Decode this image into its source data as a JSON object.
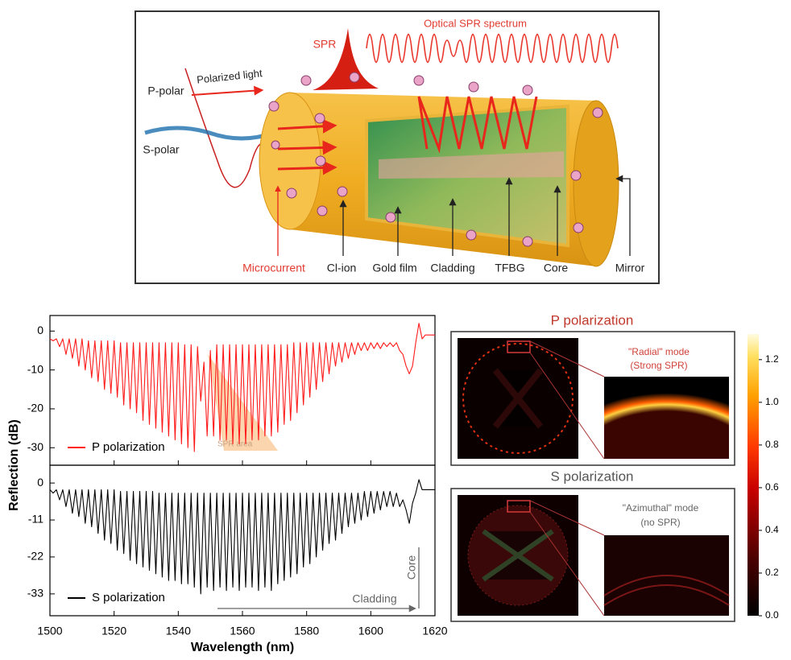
{
  "diagram": {
    "spectrum_label": "Optical SPR spectrum",
    "spr_label": "SPR",
    "light_label": "Polarized light",
    "p_label": "P-polar",
    "s_label": "S-polar",
    "parts": [
      "Microcurrent",
      "Cl-ion",
      "Gold film",
      "Cladding",
      "TFBG",
      "Core",
      "Mirror"
    ]
  },
  "chart_data": [
    {
      "type": "line",
      "ylabel": "Reflection (dB)",
      "annotations": [
        "SPR area"
      ],
      "x": [
        1500,
        1501,
        1502,
        1503,
        1504,
        1505,
        1506,
        1507,
        1508,
        1509,
        1510,
        1511,
        1512,
        1513,
        1514,
        1515,
        1516,
        1517,
        1518,
        1519,
        1520,
        1521,
        1522,
        1523,
        1524,
        1525,
        1526,
        1527,
        1528,
        1529,
        1530,
        1531,
        1532,
        1533,
        1534,
        1535,
        1536,
        1537,
        1538,
        1539,
        1540,
        1541,
        1542,
        1543,
        1544,
        1545,
        1546,
        1547,
        1548,
        1549,
        1550,
        1551,
        1552,
        1553,
        1554,
        1555,
        1556,
        1557,
        1558,
        1559,
        1560,
        1561,
        1562,
        1563,
        1564,
        1565,
        1566,
        1567,
        1568,
        1569,
        1570,
        1571,
        1572,
        1573,
        1574,
        1575,
        1576,
        1577,
        1578,
        1579,
        1580,
        1581,
        1582,
        1583,
        1584,
        1585,
        1586,
        1587,
        1588,
        1589,
        1590,
        1591,
        1592,
        1593,
        1594,
        1595,
        1596,
        1597,
        1598,
        1599,
        1600,
        1601,
        1602,
        1603,
        1604,
        1605,
        1606,
        1607,
        1608,
        1609,
        1610,
        1611,
        1612,
        1613,
        1614,
        1615,
        1616,
        1617,
        1618,
        1619,
        1620
      ],
      "series": [
        {
          "name": "P polarization",
          "color": "#ff1a1a",
          "values": [
            -2,
            -2.5,
            -2,
            -4,
            -2,
            -6,
            -2,
            -7,
            -2,
            -9,
            -2,
            -10,
            -2.5,
            -12,
            -2.5,
            -13,
            -2.5,
            -15,
            -2.5,
            -16,
            -2.5,
            -17,
            -3,
            -19,
            -3,
            -20,
            -3,
            -21,
            -3,
            -23,
            -3,
            -24,
            -3,
            -25,
            -3,
            -26,
            -3,
            -27,
            -3,
            -28,
            -3,
            -29,
            -3.5,
            -30,
            -3.5,
            -31,
            -4,
            -18,
            -8,
            -27,
            -5,
            -27,
            -3.5,
            -28,
            -3.5,
            -28,
            -3.5,
            -29,
            -3.5,
            -29,
            -3.5,
            -29,
            -3.5,
            -28,
            -3.5,
            -28,
            -3.5,
            -27,
            -3.5,
            -27,
            -3.5,
            -26,
            -3.5,
            -24,
            -3.5,
            -23,
            -3,
            -21,
            -3,
            -19,
            -3,
            -17,
            -3,
            -15,
            -3,
            -13,
            -3,
            -11,
            -3,
            -9,
            -3,
            -8,
            -3,
            -7,
            -3,
            -6,
            -3,
            -5,
            -3,
            -5,
            -3,
            -4.5,
            -3,
            -4.5,
            -3,
            -4,
            -3,
            -4,
            -3,
            -5,
            -6,
            -9,
            -11,
            -9,
            -3,
            2,
            -2,
            -1,
            -1,
            -1,
            -1
          ]
        }
      ],
      "xlim": [
        1500,
        1620
      ],
      "xticks": [
        1500,
        1520,
        1540,
        1560,
        1580,
        1600,
        1620
      ],
      "ylim": [
        -34.5,
        4
      ],
      "yticks": [
        0,
        -10,
        -20,
        -30
      ]
    },
    {
      "type": "line",
      "xlabel": "Wavelength (nm)",
      "annotations": [
        "Cladding",
        "Core"
      ],
      "x": [
        1500,
        1501,
        1502,
        1503,
        1504,
        1505,
        1506,
        1507,
        1508,
        1509,
        1510,
        1511,
        1512,
        1513,
        1514,
        1515,
        1516,
        1517,
        1518,
        1519,
        1520,
        1521,
        1522,
        1523,
        1524,
        1525,
        1526,
        1527,
        1528,
        1529,
        1530,
        1531,
        1532,
        1533,
        1534,
        1535,
        1536,
        1537,
        1538,
        1539,
        1540,
        1541,
        1542,
        1543,
        1544,
        1545,
        1546,
        1547,
        1548,
        1549,
        1550,
        1551,
        1552,
        1553,
        1554,
        1555,
        1556,
        1557,
        1558,
        1559,
        1560,
        1561,
        1562,
        1563,
        1564,
        1565,
        1566,
        1567,
        1568,
        1569,
        1570,
        1571,
        1572,
        1573,
        1574,
        1575,
        1576,
        1577,
        1578,
        1579,
        1580,
        1581,
        1582,
        1583,
        1584,
        1585,
        1586,
        1587,
        1588,
        1589,
        1590,
        1591,
        1592,
        1593,
        1594,
        1595,
        1596,
        1597,
        1598,
        1599,
        1600,
        1601,
        1602,
        1603,
        1604,
        1605,
        1606,
        1607,
        1608,
        1609,
        1610,
        1611,
        1612,
        1613,
        1614,
        1615,
        1616,
        1617,
        1618,
        1619,
        1620
      ],
      "series": [
        {
          "name": "S polarization",
          "color": "#000000",
          "values": [
            -2,
            -3,
            -2,
            -5,
            -2,
            -7,
            -2,
            -9,
            -2,
            -10,
            -2,
            -12,
            -2,
            -13,
            -2,
            -15,
            -2,
            -17,
            -2,
            -18,
            -2,
            -20,
            -2.5,
            -21,
            -2.5,
            -23,
            -2.5,
            -24,
            -2.5,
            -25,
            -2.5,
            -26,
            -2.5,
            -27,
            -3,
            -28,
            -3,
            -29,
            -3,
            -29,
            -3,
            -30,
            -3,
            -30,
            -3,
            -31,
            -3,
            -33,
            -3,
            -31,
            -3,
            -32,
            -3,
            -31,
            -3,
            -32,
            -3,
            -31,
            -3,
            -32,
            -3,
            -31,
            -3,
            -31,
            -3,
            -32,
            -3,
            -31,
            -3,
            -32,
            -3,
            -30,
            -3,
            -29,
            -3,
            -28,
            -3,
            -27,
            -3,
            -25,
            -3,
            -24,
            -3,
            -22,
            -3,
            -20,
            -3,
            -18,
            -3,
            -17,
            -3,
            -15,
            -3,
            -13,
            -3,
            -12,
            -3,
            -11,
            -2.5,
            -10,
            -2.5,
            -9,
            -2.5,
            -8,
            -2.5,
            -7,
            -2.5,
            -7,
            -3,
            -7,
            -5,
            -8,
            -12,
            -6,
            -3,
            1,
            -2,
            -2,
            -2,
            -2,
            -2
          ]
        }
      ],
      "xlim": [
        1500,
        1620
      ],
      "xticks": [
        1500,
        1520,
        1540,
        1560,
        1580,
        1600,
        1620
      ],
      "ylim": [
        -39.5,
        5.3
      ],
      "yticks": [
        0,
        -11,
        -22,
        -33
      ]
    }
  ],
  "mode_panels": [
    {
      "title": "P polarization",
      "mode_label": [
        "\"Radial\" mode",
        "(Strong SPR)"
      ]
    },
    {
      "title": "S polarization",
      "mode_label": [
        "\"Azimuthal\" mode",
        "(no SPR)"
      ]
    }
  ],
  "colorbar": {
    "lim": [
      0,
      1.32
    ],
    "ticks": [
      {
        "value": 0,
        "label": "0.0"
      },
      {
        "value": 0.2,
        "label": "0.2"
      },
      {
        "value": 0.4,
        "label": "0.4"
      },
      {
        "value": 0.6,
        "label": "0.6"
      },
      {
        "value": 0.8,
        "label": "0.8"
      },
      {
        "value": 1,
        "label": "1.0"
      },
      {
        "value": 1.2,
        "label": "1.2"
      }
    ]
  }
}
